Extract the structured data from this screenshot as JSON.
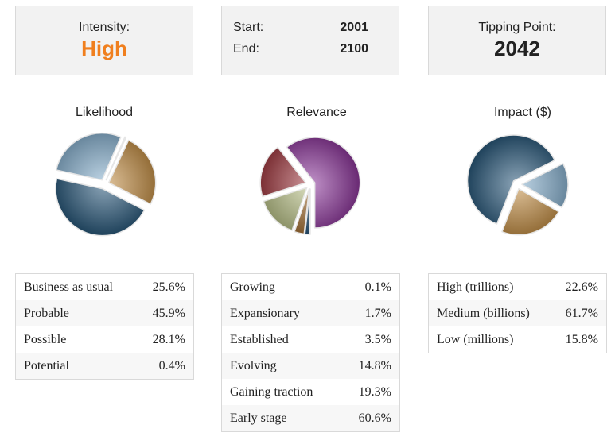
{
  "intensity": {
    "label": "Intensity:",
    "value": "High",
    "color": "#f07f1e"
  },
  "range": {
    "start_label": "Start:",
    "start_value": "2001",
    "end_label": "End:",
    "end_value": "2100"
  },
  "tipping": {
    "label": "Tipping Point:",
    "value": "2042"
  },
  "chart_data": [
    {
      "type": "pie",
      "title": "Likelihood",
      "categories": [
        "Business as usual",
        "Probable",
        "Possible",
        "Potential"
      ],
      "labels": [
        "25.6%",
        "45.9%",
        "28.1%",
        "0.4%"
      ],
      "values": [
        25.6,
        45.9,
        28.1,
        0.4
      ],
      "colors": [
        "#c8954e",
        "#2c5a7c",
        "#8fb6d4",
        "#8fb6d4"
      ]
    },
    {
      "type": "pie",
      "title": "Relevance",
      "categories": [
        "Growing",
        "Expansionary",
        "Established",
        "Evolving",
        "Gaining traction",
        "Early stage"
      ],
      "labels": [
        "0.1%",
        "1.7%",
        "3.5%",
        "14.8%",
        "19.3%",
        "60.6%"
      ],
      "values": [
        0.1,
        1.7,
        3.5,
        14.8,
        19.3,
        60.6
      ],
      "colors": [
        "#2e4f6b",
        "#2e5b7f",
        "#a9773c",
        "#bfc68e",
        "#a64249",
        "#8e3b9c"
      ]
    },
    {
      "type": "pie",
      "title": "Impact ($)",
      "categories": [
        "High (trillions)",
        "Medium (billions)",
        "Low (millions)"
      ],
      "labels": [
        "22.6%",
        "61.7%",
        "15.8%"
      ],
      "values": [
        22.6,
        61.7,
        15.8
      ],
      "colors": [
        "#c8954e",
        "#2c5a7c",
        "#8fb6d4"
      ]
    }
  ]
}
